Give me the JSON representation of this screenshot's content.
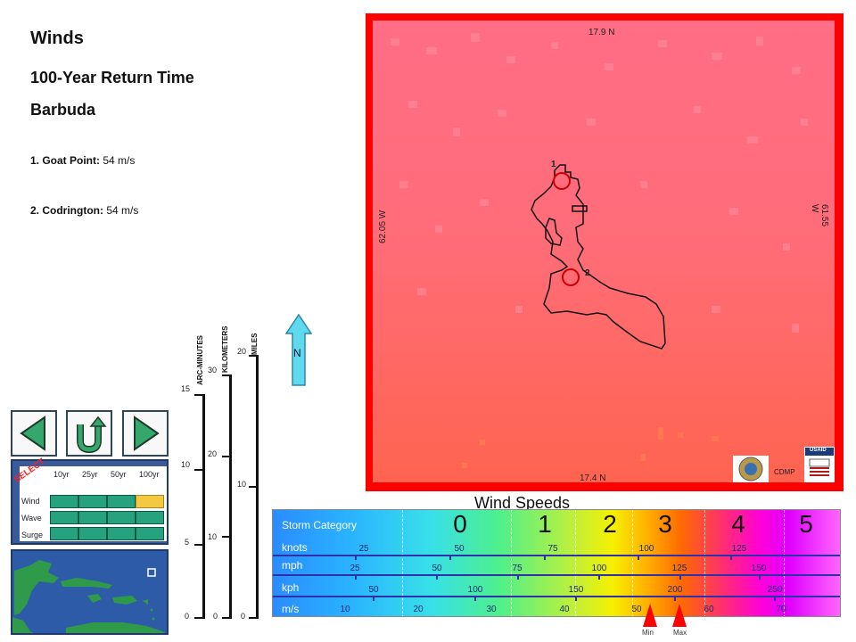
{
  "title": "Winds",
  "subtitle": "100-Year Return Time",
  "location": "Barbuda",
  "stations": [
    {
      "label": "1. Goat Point:",
      "value": "54 m/s"
    },
    {
      "label": "2. Codrington:",
      "value": "54 m/s"
    }
  ],
  "select_panel": {
    "word": "SELECT",
    "columns": [
      "10yr",
      "25yr",
      "50yr",
      "100yr"
    ],
    "rows": [
      "Wind",
      "Wave",
      "Surge"
    ],
    "selected": {
      "row": "Wind",
      "column": "100yr"
    }
  },
  "scales": {
    "arc_minutes": {
      "label": "ARC-MINUTES",
      "ticks": [
        "0",
        "5",
        "10",
        "15"
      ]
    },
    "kilometers": {
      "label": "KILOMETERS",
      "ticks": [
        "0",
        "10",
        "20",
        "30"
      ]
    },
    "miles": {
      "label": "MILES",
      "ticks": [
        "0",
        "10",
        "20"
      ]
    }
  },
  "north_label": "N",
  "map": {
    "top_label": "17.9 N",
    "bottom_label": "17.4 N",
    "left_label": "62.05 W",
    "right_label": "61.55 W",
    "markers": [
      "1",
      "2"
    ],
    "credit": "CDMP",
    "usaid": "USAID"
  },
  "wind_scale": {
    "title": "Wind Speeds",
    "storm_category_label": "Storm Category",
    "categories": [
      "0",
      "1",
      "2",
      "3",
      "4",
      "5"
    ],
    "units": [
      {
        "name": "knots",
        "ticks": [
          "25",
          "50",
          "75",
          "100",
          "125"
        ]
      },
      {
        "name": "mph",
        "ticks": [
          "25",
          "50",
          "75",
          "100",
          "125",
          "150"
        ]
      },
      {
        "name": "kph",
        "ticks": [
          "50",
          "100",
          "150",
          "200",
          "250"
        ]
      },
      {
        "name": "m/s",
        "ticks": [
          "10",
          "20",
          "30",
          "40",
          "50",
          "60",
          "70"
        ]
      }
    ],
    "min_label": "Min",
    "max_label": "Max",
    "marker_color": "#ff0000"
  },
  "colors": {
    "map_frame": "#ff0000",
    "panel": "#3a5a9a",
    "selected_cell": "#f5c842",
    "cell": "#27a27f"
  }
}
